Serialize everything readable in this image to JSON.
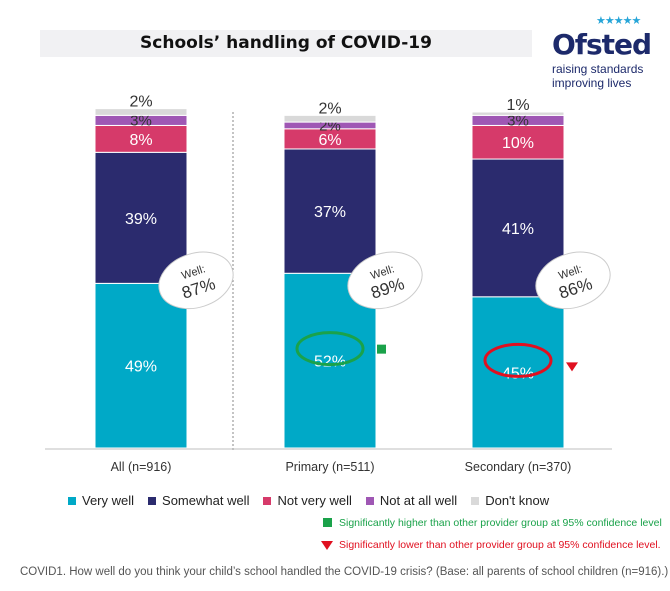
{
  "title": "Schools’ handling of COVID-19",
  "logo": {
    "word": "Ofsted",
    "line1": "raising standards",
    "line2": "improving lives",
    "stars": "★★★★★"
  },
  "legend": [
    {
      "label": "Very well",
      "color": "#00a9c7"
    },
    {
      "label": "Somewhat well",
      "color": "#2b2b6e"
    },
    {
      "label": "Not very well",
      "color": "#d63a6a"
    },
    {
      "label": "Not at all well",
      "color": "#9f57b4"
    },
    {
      "label": "Don't know",
      "color": "#d9d9d9"
    }
  ],
  "significance": {
    "higher": "Significantly higher than other provider group at 95% confidence level",
    "lower": "Significantly lower than other provider group at 95% confidence level.",
    "higher_color": "#1aa24a",
    "lower_color": "#e01020"
  },
  "footnote": "COVID1. How well do you think your child’s school handled the COVID-19 crisis? (Base: all parents of school children (n=916).)",
  "chart_data": {
    "type": "bar",
    "stacked": true,
    "categories": [
      "All (n=916)",
      "Primary (n=511)",
      "Secondary (n=370)"
    ],
    "ylim": [
      0,
      100
    ],
    "series": [
      {
        "name": "Very well",
        "values": [
          49,
          52,
          45
        ],
        "labels": [
          "49%",
          "52%",
          "45%"
        ]
      },
      {
        "name": "Somewhat well",
        "values": [
          39,
          37,
          41
        ],
        "labels": [
          "39%",
          "37%",
          "41%"
        ]
      },
      {
        "name": "Not very well",
        "values": [
          8,
          6,
          10
        ],
        "labels": [
          "8%",
          "6%",
          "10%"
        ]
      },
      {
        "name": "Not at all well",
        "values": [
          3,
          2,
          3
        ],
        "labels": [
          "3%",
          "2%",
          "3%"
        ]
      },
      {
        "name": "Don't know",
        "values": [
          2,
          2,
          1
        ],
        "labels": [
          "2%",
          "2%",
          "1%"
        ]
      }
    ],
    "well_totals": [
      {
        "label": "Well:",
        "value": "87%"
      },
      {
        "label": "Well:",
        "value": "89%"
      },
      {
        "label": "Well:",
        "value": "86%"
      }
    ],
    "significance_marks": [
      {
        "category": "Primary (n=511)",
        "series": "Very well",
        "direction": "higher"
      },
      {
        "category": "Secondary (n=370)",
        "series": "Very well",
        "direction": "lower"
      }
    ]
  }
}
